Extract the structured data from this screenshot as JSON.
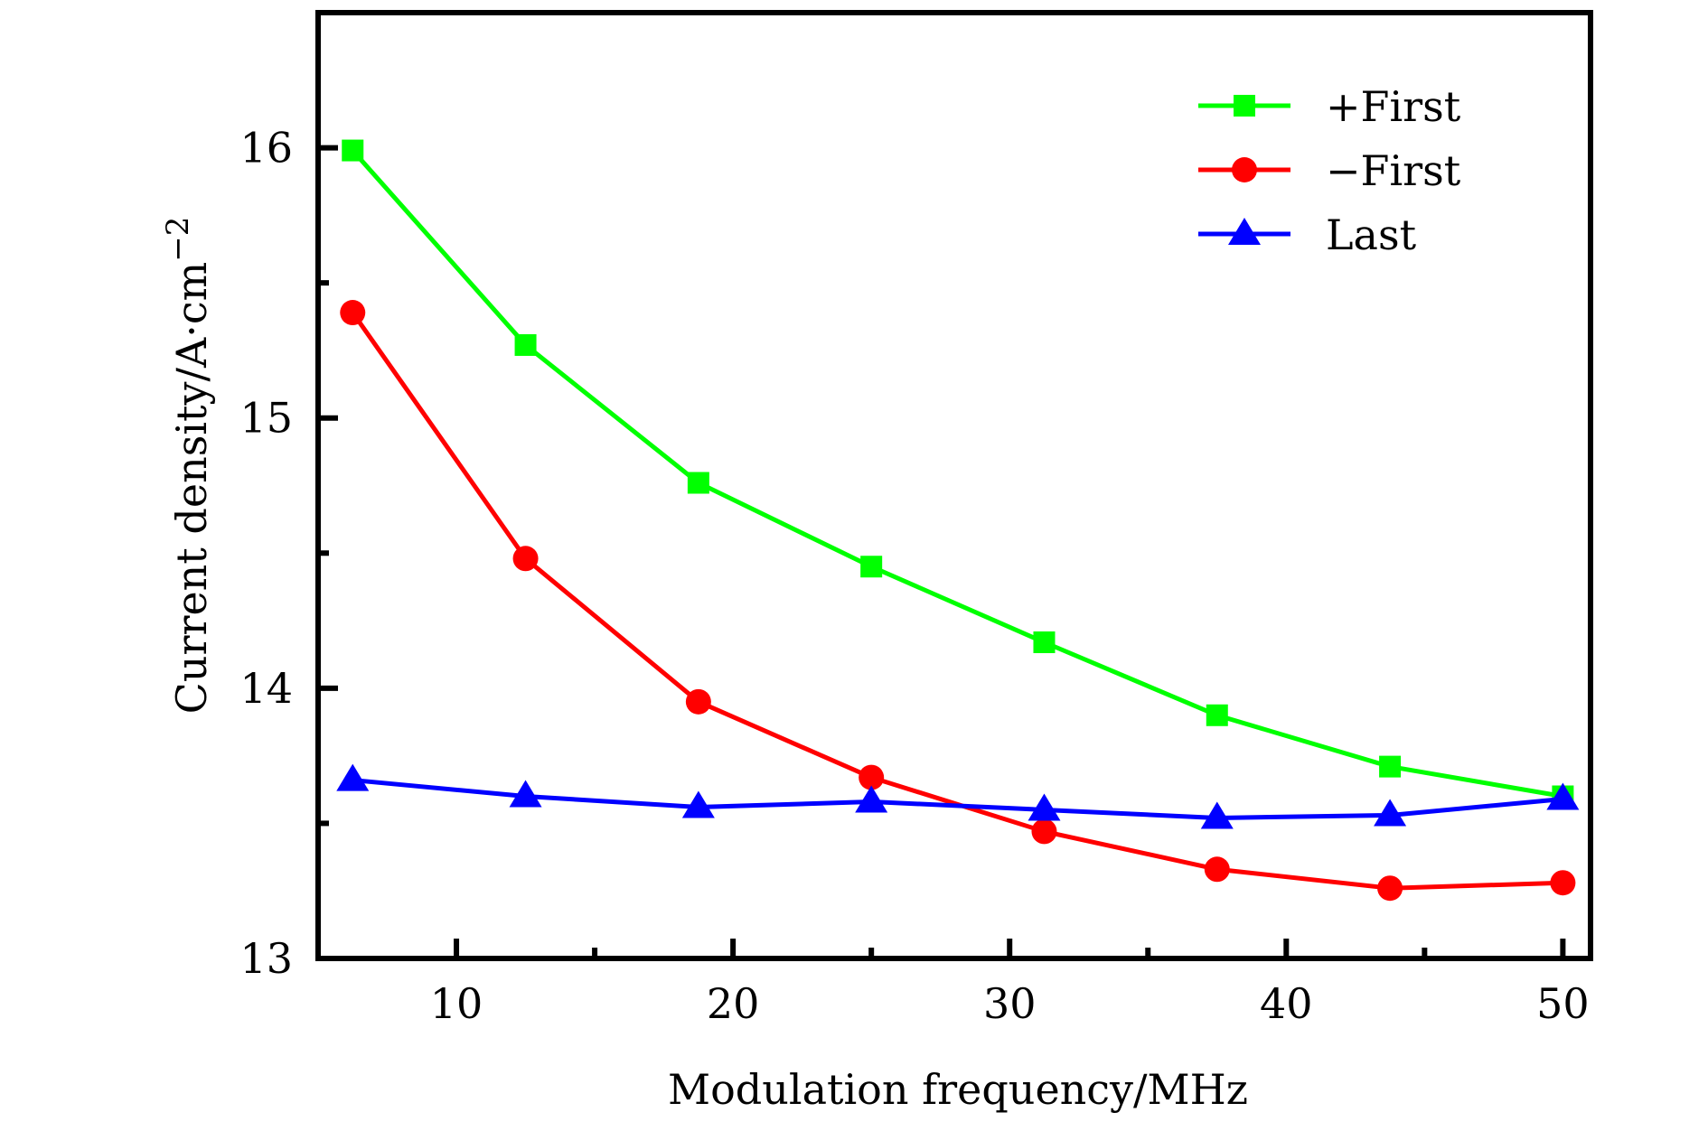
{
  "chart_data": {
    "type": "line",
    "title": "",
    "xlabel": "Modulation frequency/MHz",
    "ylabel": "Current density/A·cm",
    "ylabel_superscript": "−2",
    "xlim": [
      5,
      51
    ],
    "ylim": [
      13,
      16.5
    ],
    "xticks": [
      10,
      20,
      30,
      40,
      50
    ],
    "xtick_labels": [
      "10",
      "20",
      "30",
      "40",
      "50"
    ],
    "xminor_ticks": [
      15,
      25,
      35,
      45
    ],
    "yticks": [
      13,
      14,
      15,
      16
    ],
    "ytick_labels": [
      "13",
      "14",
      "15",
      "16"
    ],
    "yminor_ticks": [
      13.5,
      14.5,
      15.5
    ],
    "grid": false,
    "legend_position": "top-right",
    "x": [
      6.25,
      12.5,
      18.75,
      25,
      31.25,
      37.5,
      43.75,
      50
    ],
    "series": [
      {
        "name": "+First",
        "color": "#00ff00",
        "marker": "square",
        "values": [
          15.99,
          15.27,
          14.76,
          14.45,
          14.17,
          13.9,
          13.71,
          13.6
        ]
      },
      {
        "name": "−First",
        "color": "#ff0000",
        "marker": "circle",
        "values": [
          15.39,
          14.48,
          13.95,
          13.67,
          13.47,
          13.33,
          13.26,
          13.28
        ]
      },
      {
        "name": "Last",
        "color": "#0000ff",
        "marker": "triangle",
        "values": [
          13.66,
          13.6,
          13.56,
          13.58,
          13.55,
          13.52,
          13.53,
          13.59
        ]
      }
    ]
  }
}
